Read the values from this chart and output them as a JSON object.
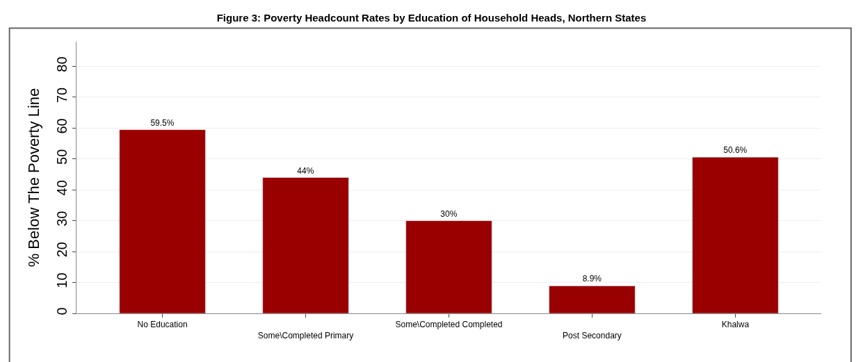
{
  "chart_data": {
    "type": "bar",
    "title": "Figure 3: Poverty Headcount Rates by Education of Household Heads, Northern States",
    "ylabel": "% Below The Poverty Line",
    "categories": [
      "No Education",
      "Some\\Completed Primary",
      "Some\\Completed Completed",
      "Post Secondary",
      "Khalwa"
    ],
    "values": [
      59.5,
      44,
      30,
      8.9,
      50.6
    ],
    "value_labels": [
      "59.5%",
      "44%",
      "30%",
      "8.9%",
      "50.6%"
    ],
    "color": "#990000",
    "ylim": [
      0,
      88
    ],
    "yticks": [
      0,
      10,
      20,
      30,
      40,
      50,
      60,
      70,
      80
    ],
    "grid": "y"
  }
}
